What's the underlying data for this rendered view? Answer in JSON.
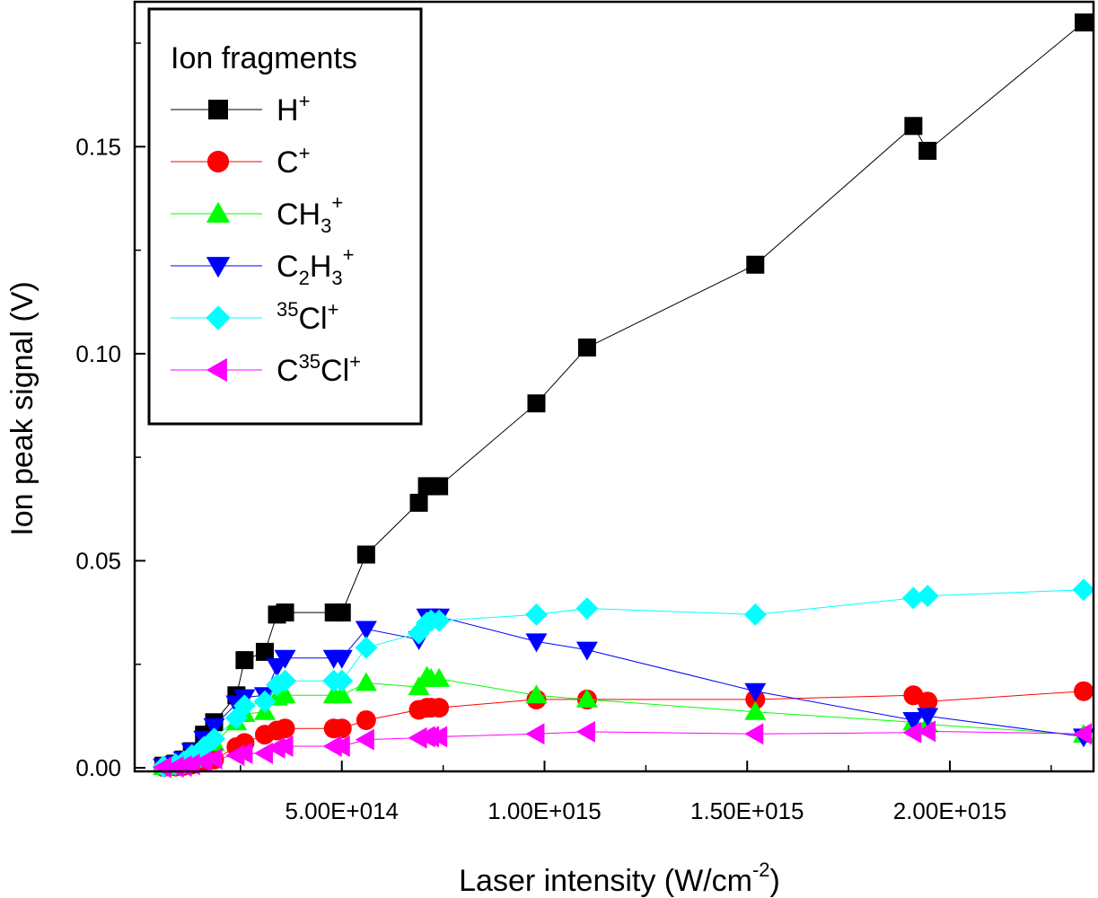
{
  "chart_data": {
    "type": "line",
    "title": "",
    "xlabel": "Laser intensity (W/cm",
    "xlabel_sup": "-2",
    "xlabel_end": ")",
    "ylabel": "Ion peak signal (V)",
    "xlim": [
      0,
      2330000000000000
    ],
    "ylim": [
      0,
      0.18
    ],
    "x_ticks": [
      500000000000000,
      1000000000000000,
      1500000000000000,
      2000000000000000
    ],
    "x_tick_labels": [
      "5.00E+014",
      "1.00E+015",
      "1.50E+015",
      "2.00E+015"
    ],
    "y_ticks": [
      0,
      0.05,
      0.1,
      0.15
    ],
    "y_tick_labels": [
      "0.00",
      "0.05",
      "0.10",
      "0.15"
    ],
    "grid": false,
    "legend": {
      "title": "Ion fragments",
      "position": "top-left"
    },
    "x": [
      60000000000000,
      90000000000000,
      110000000000000,
      130000000000000,
      160000000000000,
      185000000000000,
      240000000000000,
      260000000000000,
      310000000000000,
      340000000000000,
      360000000000000,
      480000000000000,
      500000000000000,
      560000000000000,
      690000000000000,
      710000000000000,
      720000000000000,
      740000000000000,
      980000000000000,
      1105000000000000,
      1520000000000000,
      1910000000000000,
      1945000000000000,
      2330000000000000
    ],
    "series": [
      {
        "name": "H+",
        "label_main": "H",
        "label_sub": "",
        "label_tail": "",
        "label_sup": "+",
        "label_pre_sup": "",
        "color": "#000000",
        "marker": "square",
        "values": [
          0.0005,
          0.001,
          0.002,
          0.004,
          0.008,
          0.011,
          0.0175,
          0.026,
          0.028,
          0.037,
          0.0375,
          0.0375,
          0.0375,
          0.0515,
          0.064,
          0.068,
          0.068,
          0.068,
          0.088,
          0.1015,
          0.1215,
          0.155,
          0.149,
          0.18
        ]
      },
      {
        "name": "C+",
        "label_main": "C",
        "label_sub": "",
        "label_tail": "",
        "label_sup": "+",
        "label_pre_sup": "",
        "color": "#ff0000",
        "marker": "circle",
        "values": [
          0.0002,
          0.0003,
          0.0005,
          0.0008,
          0.0013,
          0.002,
          0.005,
          0.006,
          0.008,
          0.009,
          0.0095,
          0.0095,
          0.0095,
          0.0115,
          0.014,
          0.0145,
          0.0145,
          0.0145,
          0.0165,
          0.0165,
          0.0165,
          0.0175,
          0.016,
          0.0185
        ]
      },
      {
        "name": "CH3+",
        "label_main": "CH",
        "label_sub": "3",
        "label_tail": "",
        "label_sup": "+",
        "label_pre_sup": "",
        "color": "#00ff00",
        "marker": "triangle-up",
        "values": [
          0.0002,
          0.0005,
          0.001,
          0.002,
          0.004,
          0.006,
          0.011,
          0.013,
          0.0135,
          0.017,
          0.0175,
          0.0175,
          0.0175,
          0.0205,
          0.0195,
          0.022,
          0.0215,
          0.0215,
          0.0175,
          0.0165,
          0.0135,
          0.011,
          0.0105,
          0.008
        ]
      },
      {
        "name": "C2H3+",
        "label_main": "C",
        "label_sub": "2",
        "label_tail": "H",
        "label_sub2": "3",
        "label_sup": "+",
        "label_pre_sup": "",
        "color": "#0000ff",
        "marker": "triangle-down",
        "values": [
          0.0003,
          0.001,
          0.002,
          0.004,
          0.007,
          0.01,
          0.0155,
          0.017,
          0.0175,
          0.0245,
          0.0265,
          0.0265,
          0.0265,
          0.0335,
          0.031,
          0.0365,
          0.0365,
          0.0365,
          0.0305,
          0.0285,
          0.0185,
          0.0115,
          0.0125,
          0.0075
        ]
      },
      {
        "name": "35Cl+",
        "label_main": "Cl",
        "label_sub": "",
        "label_tail": "",
        "label_sup": "+",
        "label_pre_sup": "35",
        "color": "#00ffff",
        "marker": "diamond",
        "values": [
          0.0003,
          0.0008,
          0.0015,
          0.003,
          0.005,
          0.007,
          0.012,
          0.015,
          0.016,
          0.02,
          0.021,
          0.021,
          0.021,
          0.029,
          0.0325,
          0.035,
          0.0355,
          0.0355,
          0.037,
          0.0385,
          0.037,
          0.041,
          0.0415,
          0.043
        ]
      },
      {
        "name": "C35Cl+",
        "label_main": "C",
        "label_sub": "",
        "label_tail": "Cl",
        "label_mid_sup": "35",
        "label_sup": "+",
        "label_pre_sup": "",
        "color": "#ff00ff",
        "marker": "triangle-left",
        "values": [
          0.0001,
          0.0002,
          0.0004,
          0.0008,
          0.0015,
          0.0022,
          0.003,
          0.0035,
          0.0035,
          0.0048,
          0.0052,
          0.0052,
          0.0052,
          0.0068,
          0.0072,
          0.0075,
          0.0075,
          0.0075,
          0.0082,
          0.0087,
          0.0082,
          0.0085,
          0.0088,
          0.0082
        ]
      }
    ]
  }
}
